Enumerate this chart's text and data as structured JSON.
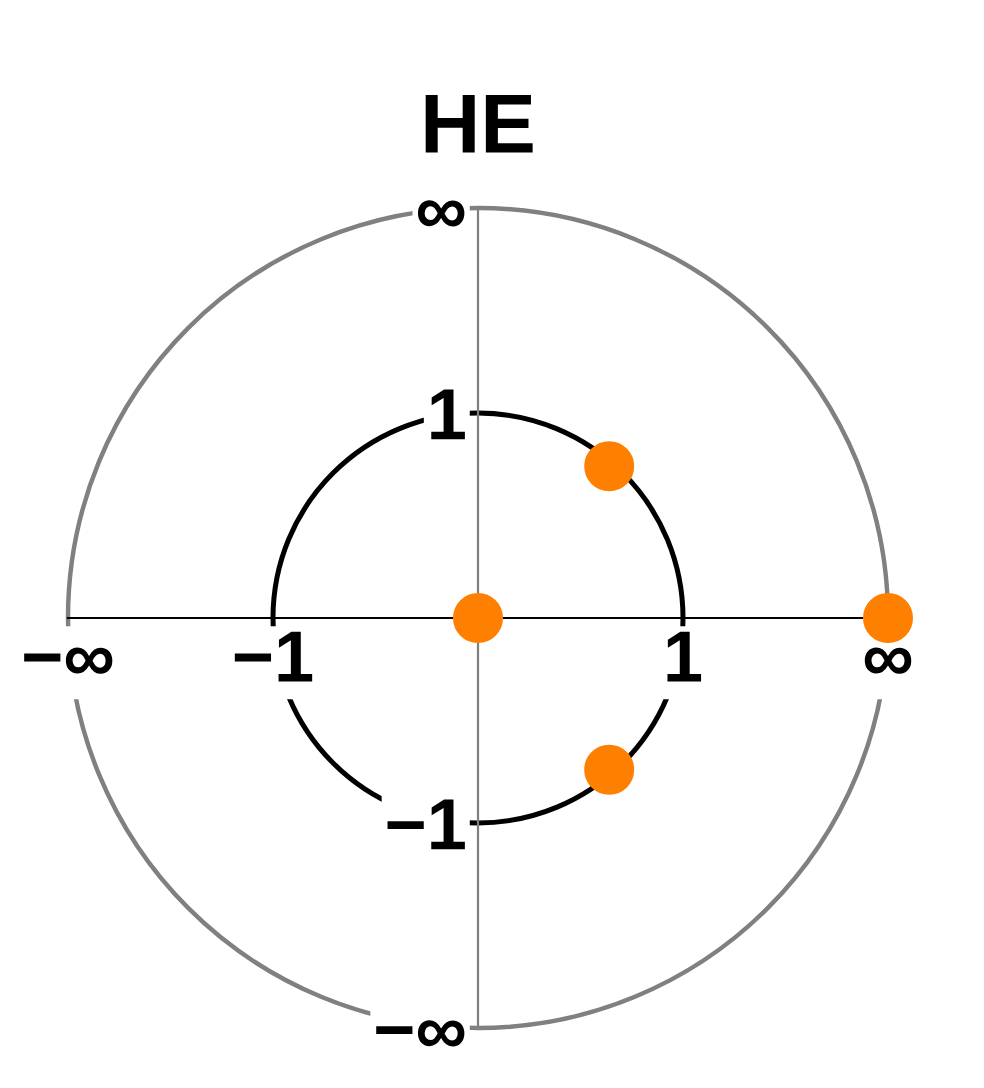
{
  "chart_data": {
    "type": "scatter",
    "title": "HE",
    "series": [
      {
        "color": "#ff8000",
        "x": [
          0,
          1,
          0.32,
          0.32
        ],
        "values": [
          0,
          0,
          0.37,
          -0.37
        ]
      }
    ],
    "xlim": [
      -1,
      1
    ],
    "ylim": [
      -1,
      1
    ],
    "xticks": [
      {
        "value": -1,
        "label": "−∞"
      },
      {
        "value": -0.5,
        "label": "−1"
      },
      {
        "value": 0.5,
        "label": "1"
      },
      {
        "value": 1,
        "label": "∞"
      }
    ],
    "yticks": [
      {
        "value": -1,
        "label": "−∞"
      },
      {
        "value": -0.5,
        "label": "−1"
      },
      {
        "value": 0.5,
        "label": "1"
      },
      {
        "value": 1,
        "label": "∞"
      }
    ],
    "marker": "circle",
    "grid": false
  }
}
